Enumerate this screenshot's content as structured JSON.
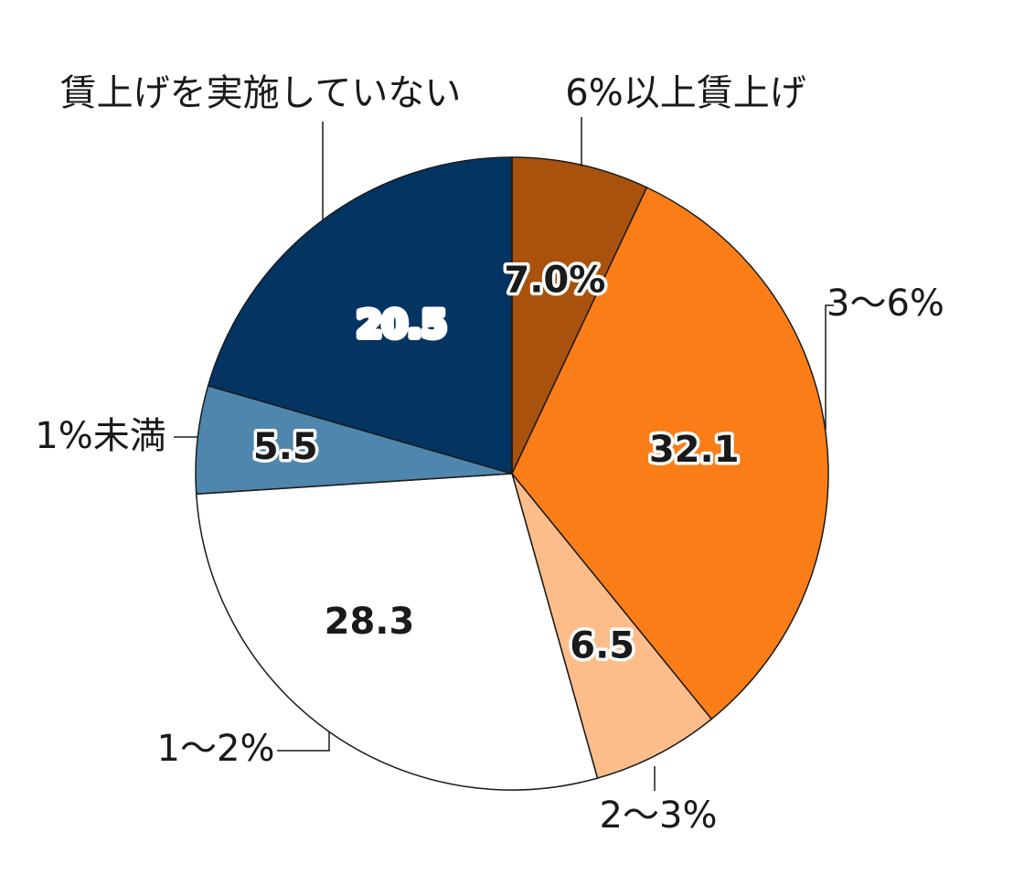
{
  "chart_data": {
    "type": "pie",
    "title": "",
    "start": "12 o'clock",
    "direction": "clockwise",
    "slices": [
      {
        "label": "6%以上賃上げ",
        "value": 7.0,
        "value_label": "7.0%",
        "color": "#a9520e",
        "value_text_color": "#1a1a1a"
      },
      {
        "label": "3〜6%",
        "value": 32.1,
        "value_label": "32.1",
        "color": "#fb7d17",
        "value_text_color": "#1a1a1a"
      },
      {
        "label": "2〜3%",
        "value": 6.5,
        "value_label": "6.5",
        "color": "#fcbd8a",
        "value_text_color": "#1a1a1a"
      },
      {
        "label": "1〜2%",
        "value": 28.3,
        "value_label": "28.3",
        "color": "#ffffff",
        "value_text_color": "#1a1a1a"
      },
      {
        "label": "1%未満",
        "value": 5.5,
        "value_label": "5.5",
        "color": "#4e86ad",
        "value_text_color": "#1a1a1a"
      },
      {
        "label": "賃上げを実施していない",
        "value": 20.5,
        "value_label": "20.5",
        "color": "#043462",
        "value_text_color": "#ffffff"
      }
    ]
  }
}
